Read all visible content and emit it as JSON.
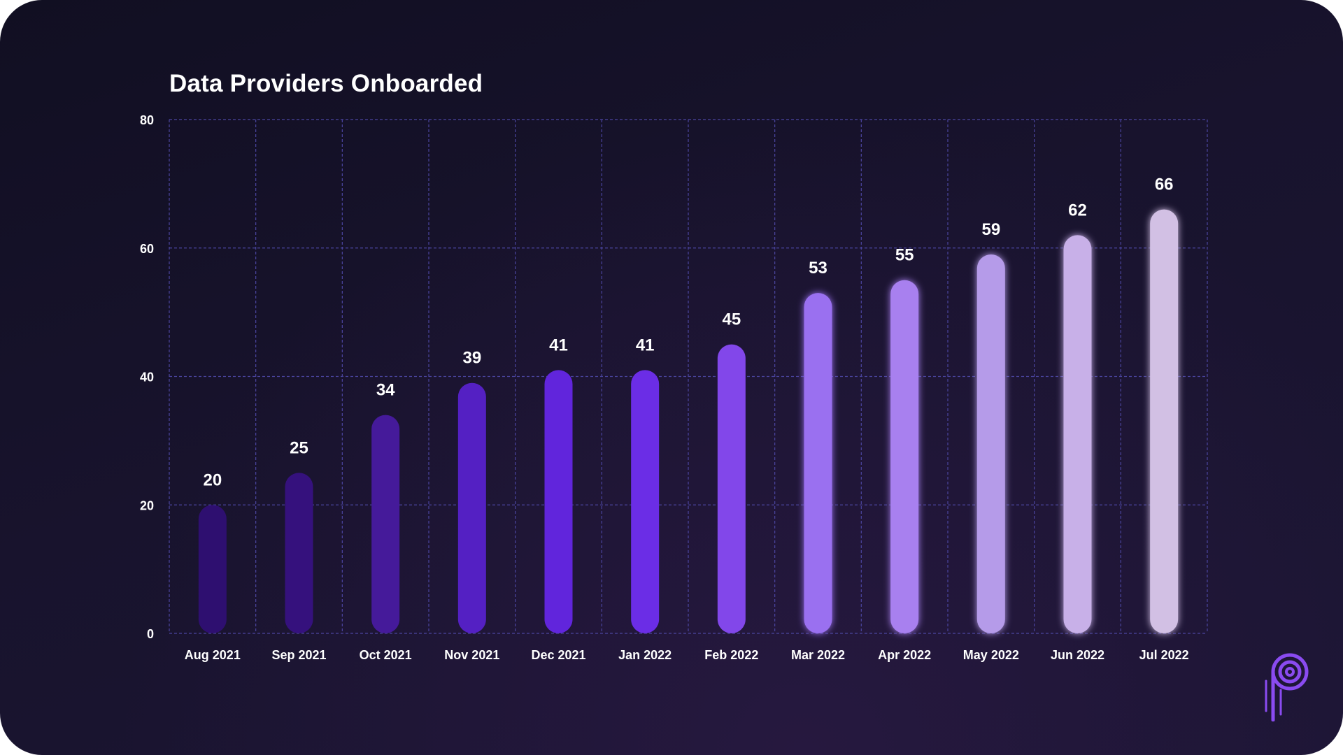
{
  "chart_data": {
    "type": "bar",
    "title": "Data Providers Onboarded",
    "xlabel": "",
    "ylabel": "",
    "categories": [
      "Aug 2021",
      "Sep 2021",
      "Oct 2021",
      "Nov 2021",
      "Dec 2021",
      "Jan 2022",
      "Feb 2022",
      "Mar 2022",
      "Apr 2022",
      "May 2022",
      "Jun 2022",
      "Jul 2022"
    ],
    "values": [
      20,
      25,
      34,
      39,
      41,
      41,
      45,
      53,
      55,
      59,
      62,
      66
    ],
    "ylim": [
      0,
      80
    ],
    "yticks": [
      0,
      20,
      40,
      60,
      80
    ],
    "grid": true,
    "bar_colors": [
      "#2e0f70",
      "#35117d",
      "#451a9a",
      "#5420c3",
      "#6125dc",
      "#6b2de6",
      "#8247ea",
      "#9a70f0",
      "#a880ef",
      "#b59be9",
      "#c8b0e8",
      "#d2c0e4"
    ],
    "grid_color": "#4b45a0",
    "data_labels": true
  },
  "branding": {
    "logo_icon": "pyth-logo-icon",
    "logo_color": "#8a4bf0"
  }
}
